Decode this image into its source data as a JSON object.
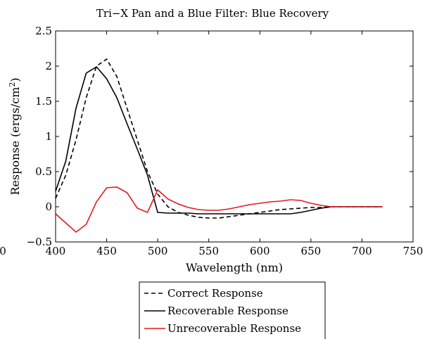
{
  "chart_data": {
    "type": "line",
    "title": "Tri−X Pan and a Blue Filter: Blue Recovery",
    "xlabel": "Wavelength (nm)",
    "ylabel_main": "Response (ergs/cm",
    "ylabel_sup": "2",
    "ylabel_end": ")",
    "xlim": [
      400,
      750
    ],
    "ylim": [
      -0.5,
      2.5
    ],
    "x_ticks": [
      400,
      450,
      500,
      550,
      600,
      650,
      700,
      750
    ],
    "x_tick_labels": [
      "400",
      "450",
      "500",
      "550",
      "600",
      "650",
      "700",
      "750"
    ],
    "y_ticks": [
      -0.5,
      0,
      0.5,
      1,
      1.5,
      2,
      2.5
    ],
    "y_tick_labels": [
      "−0.5",
      "0",
      "0.5",
      "1",
      "1.5",
      "2",
      "2.5"
    ],
    "stray_label": "0",
    "grid": false,
    "legend_position": "below",
    "series": [
      {
        "name": "Correct Response",
        "color": "#000000",
        "dash": "dashed",
        "x": [
          400,
          410,
          420,
          430,
          440,
          450,
          460,
          470,
          480,
          490,
          500,
          510,
          520,
          530,
          540,
          550,
          560,
          570,
          580,
          590,
          600,
          610,
          620,
          630,
          640,
          650,
          660,
          670,
          680,
          690,
          700,
          710,
          720
        ],
        "y": [
          0.12,
          0.45,
          0.95,
          1.55,
          2.0,
          2.1,
          1.85,
          1.4,
          0.95,
          0.5,
          0.18,
          0.0,
          -0.08,
          -0.12,
          -0.15,
          -0.16,
          -0.16,
          -0.14,
          -0.12,
          -0.1,
          -0.08,
          -0.06,
          -0.04,
          -0.03,
          -0.02,
          -0.01,
          -0.01,
          0.0,
          0.0,
          0.0,
          0.0,
          0.0,
          0.0
        ]
      },
      {
        "name": "Recoverable Response",
        "color": "#000000",
        "dash": "solid",
        "x": [
          400,
          410,
          420,
          430,
          440,
          450,
          460,
          470,
          480,
          490,
          500,
          510,
          520,
          530,
          540,
          550,
          560,
          570,
          580,
          590,
          600,
          610,
          620,
          630,
          640,
          650,
          660,
          670,
          680,
          690,
          700,
          710,
          720
        ],
        "y": [
          0.22,
          0.65,
          1.4,
          1.9,
          1.99,
          1.82,
          1.55,
          1.18,
          0.82,
          0.45,
          -0.08,
          -0.09,
          -0.09,
          -0.09,
          -0.1,
          -0.1,
          -0.1,
          -0.1,
          -0.1,
          -0.1,
          -0.1,
          -0.1,
          -0.1,
          -0.1,
          -0.08,
          -0.05,
          -0.02,
          0.0,
          0.0,
          0.0,
          0.0,
          0.0,
          0.0
        ]
      },
      {
        "name": "Unrecoverable Response",
        "color": "#e41a1c",
        "dash": "solid",
        "x": [
          400,
          410,
          420,
          430,
          440,
          450,
          460,
          470,
          480,
          490,
          500,
          510,
          520,
          530,
          540,
          550,
          560,
          570,
          580,
          590,
          600,
          610,
          620,
          630,
          640,
          650,
          660,
          670,
          680,
          690,
          700,
          710,
          720
        ],
        "y": [
          -0.1,
          -0.23,
          -0.36,
          -0.25,
          0.07,
          0.27,
          0.28,
          0.2,
          -0.02,
          -0.08,
          0.24,
          0.11,
          0.04,
          -0.01,
          -0.04,
          -0.05,
          -0.05,
          -0.03,
          0.0,
          0.03,
          0.05,
          0.07,
          0.08,
          0.1,
          0.09,
          0.05,
          0.02,
          0.0,
          0.0,
          0.0,
          0.0,
          0.0,
          0.0
        ]
      }
    ]
  }
}
